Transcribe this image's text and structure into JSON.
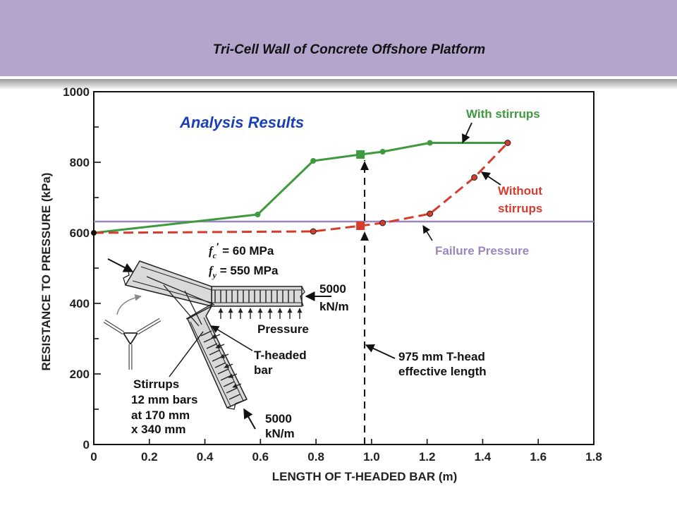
{
  "page": {
    "title": "Tri-Cell Wall of Concrete Offshore Platform"
  },
  "colors": {
    "header": "#b4a5cc",
    "with_stirrups": "#3f9a3f",
    "without_stirrups": "#d63c2d",
    "failure": "#9b86be",
    "annotation_blue": "#1a3fb8"
  },
  "chart_data": {
    "type": "line",
    "title": "Analysis Results",
    "xlabel": "LENGTH OF T-HEADED BAR  (m)",
    "ylabel": "RESISTANCE TO PRESSURE (kPa)",
    "xlim": [
      0,
      1.8
    ],
    "ylim": [
      0,
      1000
    ],
    "x_ticks": [
      0,
      0.2,
      0.4,
      0.6,
      0.8,
      1.0,
      1.2,
      1.4,
      1.6,
      1.8
    ],
    "x_tick_labels": [
      "0",
      "0.2",
      "0.4",
      "0.6",
      "0.8",
      "1.0",
      "1.2",
      "1.4",
      "1.6",
      "1.8"
    ],
    "y_ticks": [
      0,
      200,
      400,
      600,
      800,
      1000
    ],
    "y_tick_labels": [
      "0",
      "200",
      "400",
      "600",
      "800",
      "1000"
    ],
    "grid": false,
    "series": [
      {
        "name": "With stirrups",
        "style": "solid",
        "color": "#3f9a3f",
        "x": [
          0.0,
          0.59,
          0.79,
          0.96,
          1.04,
          1.21,
          1.49
        ],
        "y": [
          600,
          652,
          804,
          822,
          830,
          855,
          855
        ],
        "marked_point": [
          0.96,
          822
        ]
      },
      {
        "name": "Without stirrups",
        "label_lines": [
          "Without",
          "stirrups"
        ],
        "style": "dashed",
        "color": "#d63c2d",
        "x": [
          0.0,
          0.79,
          0.96,
          1.04,
          1.21,
          1.37,
          1.49
        ],
        "y": [
          600,
          604,
          620,
          628,
          654,
          757,
          855
        ],
        "marked_point": [
          0.96,
          620
        ]
      }
    ],
    "reference_line": {
      "name": "Failure Pressure",
      "y": 632,
      "color": "#9b86be"
    },
    "effective_length_line": {
      "x": 0.975,
      "label_lines": [
        "975 mm T-head",
        "effective length"
      ]
    },
    "inset": {
      "material_fc_prefix": "f",
      "material_fc_sub": "c",
      "material_fc_prime": "′",
      "material_fc_value": " = 60 MPa",
      "material_fy_prefix": "f",
      "material_fy_sub": "y",
      "material_fy_value": " = 550 MPa",
      "load_top_lines": [
        "5000",
        "kN/m"
      ],
      "load_bottom_lines": [
        "5000",
        "kN/m"
      ],
      "pressure_label": "Pressure",
      "theaded_lines": [
        "T-headed",
        "bar"
      ],
      "stirrups_lines": [
        "Stirrups",
        "12 mm bars",
        "at 170 mm",
        "x 340 mm"
      ]
    }
  }
}
